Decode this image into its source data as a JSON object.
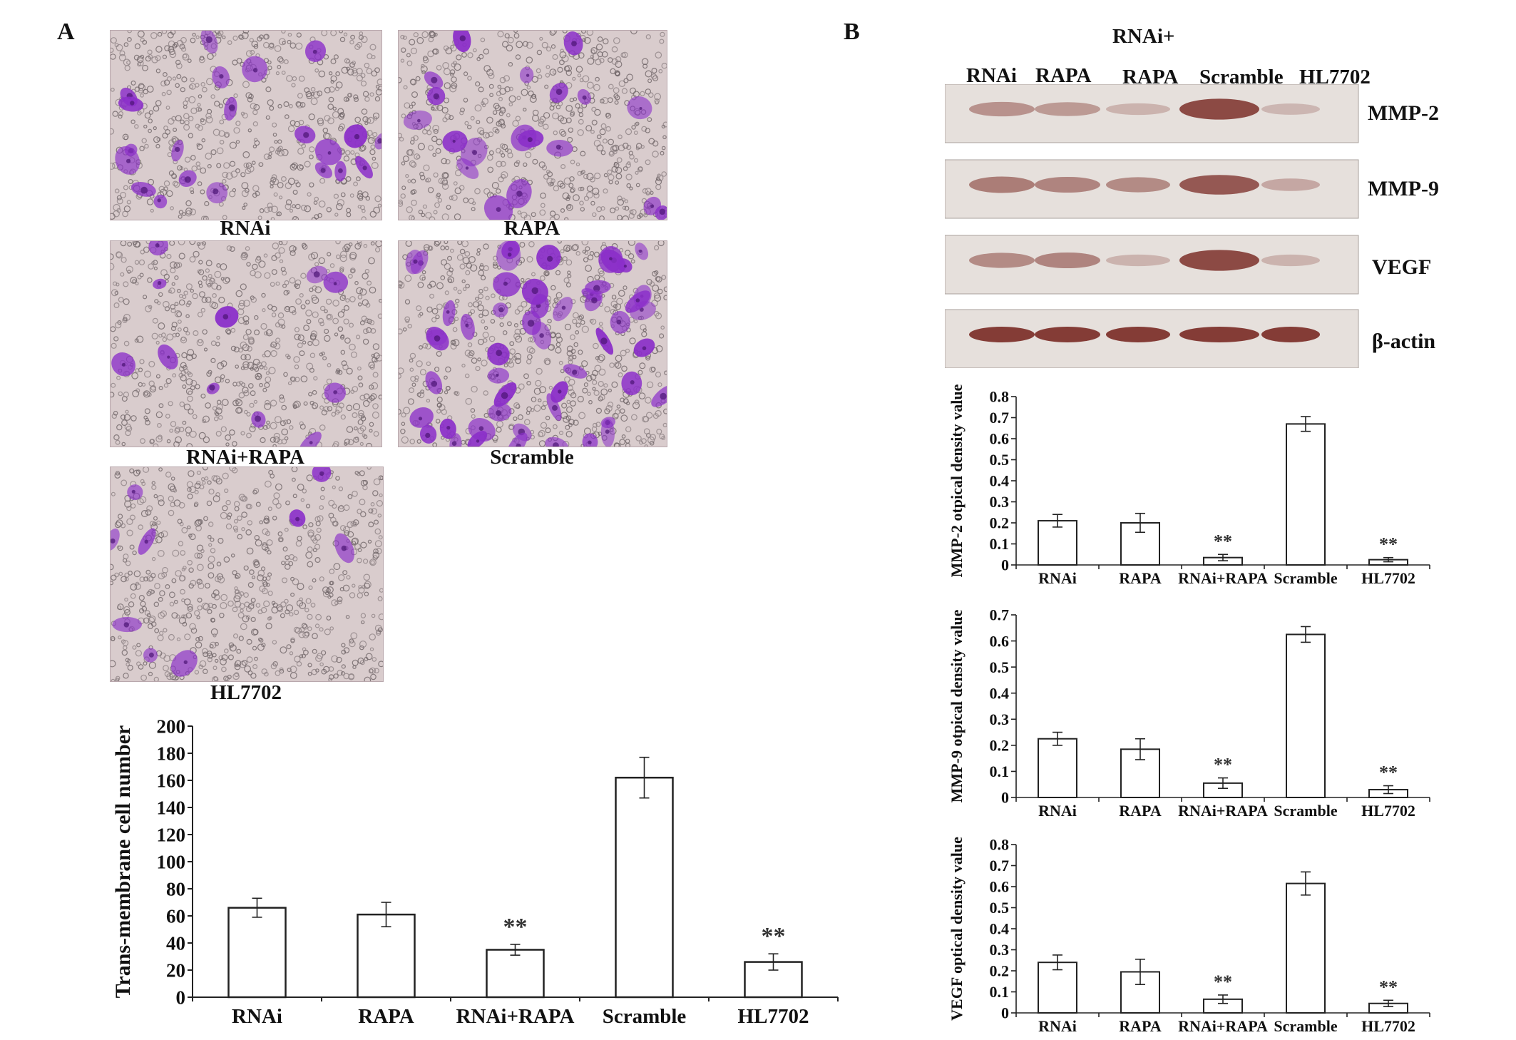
{
  "figure": {
    "panel_a_letter": "A",
    "panel_b_letter": "B",
    "micrographs": [
      {
        "label": "RNAi",
        "density": 0.35
      },
      {
        "label": "RAPA",
        "density": 0.32
      },
      {
        "label": "RNAi+RAPA",
        "density": 0.18
      },
      {
        "label": "Scramble",
        "density": 0.85
      },
      {
        "label": "HL7702",
        "density": 0.15
      }
    ],
    "blot": {
      "top_label": "RNAi+",
      "lanes": [
        "RNAi",
        "RAPA",
        "RAPA",
        "Scramble",
        "HL7702"
      ],
      "rows": [
        {
          "label": "MMP-2",
          "intensity": [
            0.35,
            0.3,
            0.12,
            0.85,
            0.1
          ]
        },
        {
          "label": "MMP-9",
          "intensity": [
            0.5,
            0.45,
            0.4,
            0.75,
            0.2
          ]
        },
        {
          "label": "VEGF",
          "intensity": [
            0.4,
            0.45,
            0.12,
            0.85,
            0.12
          ]
        },
        {
          "label": "β-actin",
          "intensity": [
            0.95,
            0.95,
            0.95,
            0.95,
            0.95
          ]
        }
      ]
    },
    "colors": {
      "micro_bg": "#d9cccd",
      "stain": "#8b2fc9",
      "blot_bg": "#e6e0dc",
      "band": "#7a2b25"
    }
  },
  "chart_data": [
    {
      "type": "bar",
      "id": "trans",
      "categories": [
        "RNAi",
        "RAPA",
        "RNAi+RAPA",
        "Scramble",
        "HL7702"
      ],
      "values": [
        66,
        61,
        35,
        162,
        26
      ],
      "errors": [
        7,
        9,
        4,
        15,
        6
      ],
      "significance": [
        "",
        "",
        "**",
        "",
        "**"
      ],
      "ylabel": "Trans-membrane cell number",
      "ylim": [
        0,
        200
      ],
      "yticks": [
        0,
        20,
        40,
        60,
        80,
        100,
        120,
        140,
        160,
        180,
        200
      ]
    },
    {
      "type": "bar",
      "id": "mmp2",
      "categories": [
        "RNAi",
        "RAPA",
        "RNAi+RAPA",
        "Scramble",
        "HL7702"
      ],
      "values": [
        0.21,
        0.2,
        0.035,
        0.67,
        0.025
      ],
      "errors": [
        0.03,
        0.045,
        0.015,
        0.035,
        0.01
      ],
      "significance": [
        "",
        "",
        "**",
        "",
        "**"
      ],
      "ylabel": "MMP-2 otpical density value",
      "ylim": [
        0,
        0.8
      ],
      "yticks": [
        0,
        0.1,
        0.2,
        0.3,
        0.4,
        0.5,
        0.6,
        0.7,
        0.8
      ]
    },
    {
      "type": "bar",
      "id": "mmp9",
      "categories": [
        "RNAi",
        "RAPA",
        "RNAi+RAPA",
        "Scramble",
        "HL7702"
      ],
      "values": [
        0.225,
        0.185,
        0.055,
        0.625,
        0.03
      ],
      "errors": [
        0.025,
        0.04,
        0.02,
        0.03,
        0.015
      ],
      "significance": [
        "",
        "",
        "**",
        "",
        "**"
      ],
      "ylabel": "MMP-9 otpical density value",
      "ylim": [
        0,
        0.7
      ],
      "yticks": [
        0,
        0.1,
        0.2,
        0.3,
        0.4,
        0.5,
        0.6,
        0.7
      ]
    },
    {
      "type": "bar",
      "id": "vegf",
      "categories": [
        "RNAi",
        "RAPA",
        "RNAi+RAPA",
        "Scramble",
        "HL7702"
      ],
      "values": [
        0.24,
        0.195,
        0.065,
        0.615,
        0.045
      ],
      "errors": [
        0.035,
        0.06,
        0.02,
        0.055,
        0.015
      ],
      "significance": [
        "",
        "",
        "**",
        "",
        "**"
      ],
      "ylabel": "VEGF optical density value",
      "ylim": [
        0,
        0.8
      ],
      "yticks": [
        0,
        0.1,
        0.2,
        0.3,
        0.4,
        0.5,
        0.6,
        0.7,
        0.8
      ]
    }
  ]
}
